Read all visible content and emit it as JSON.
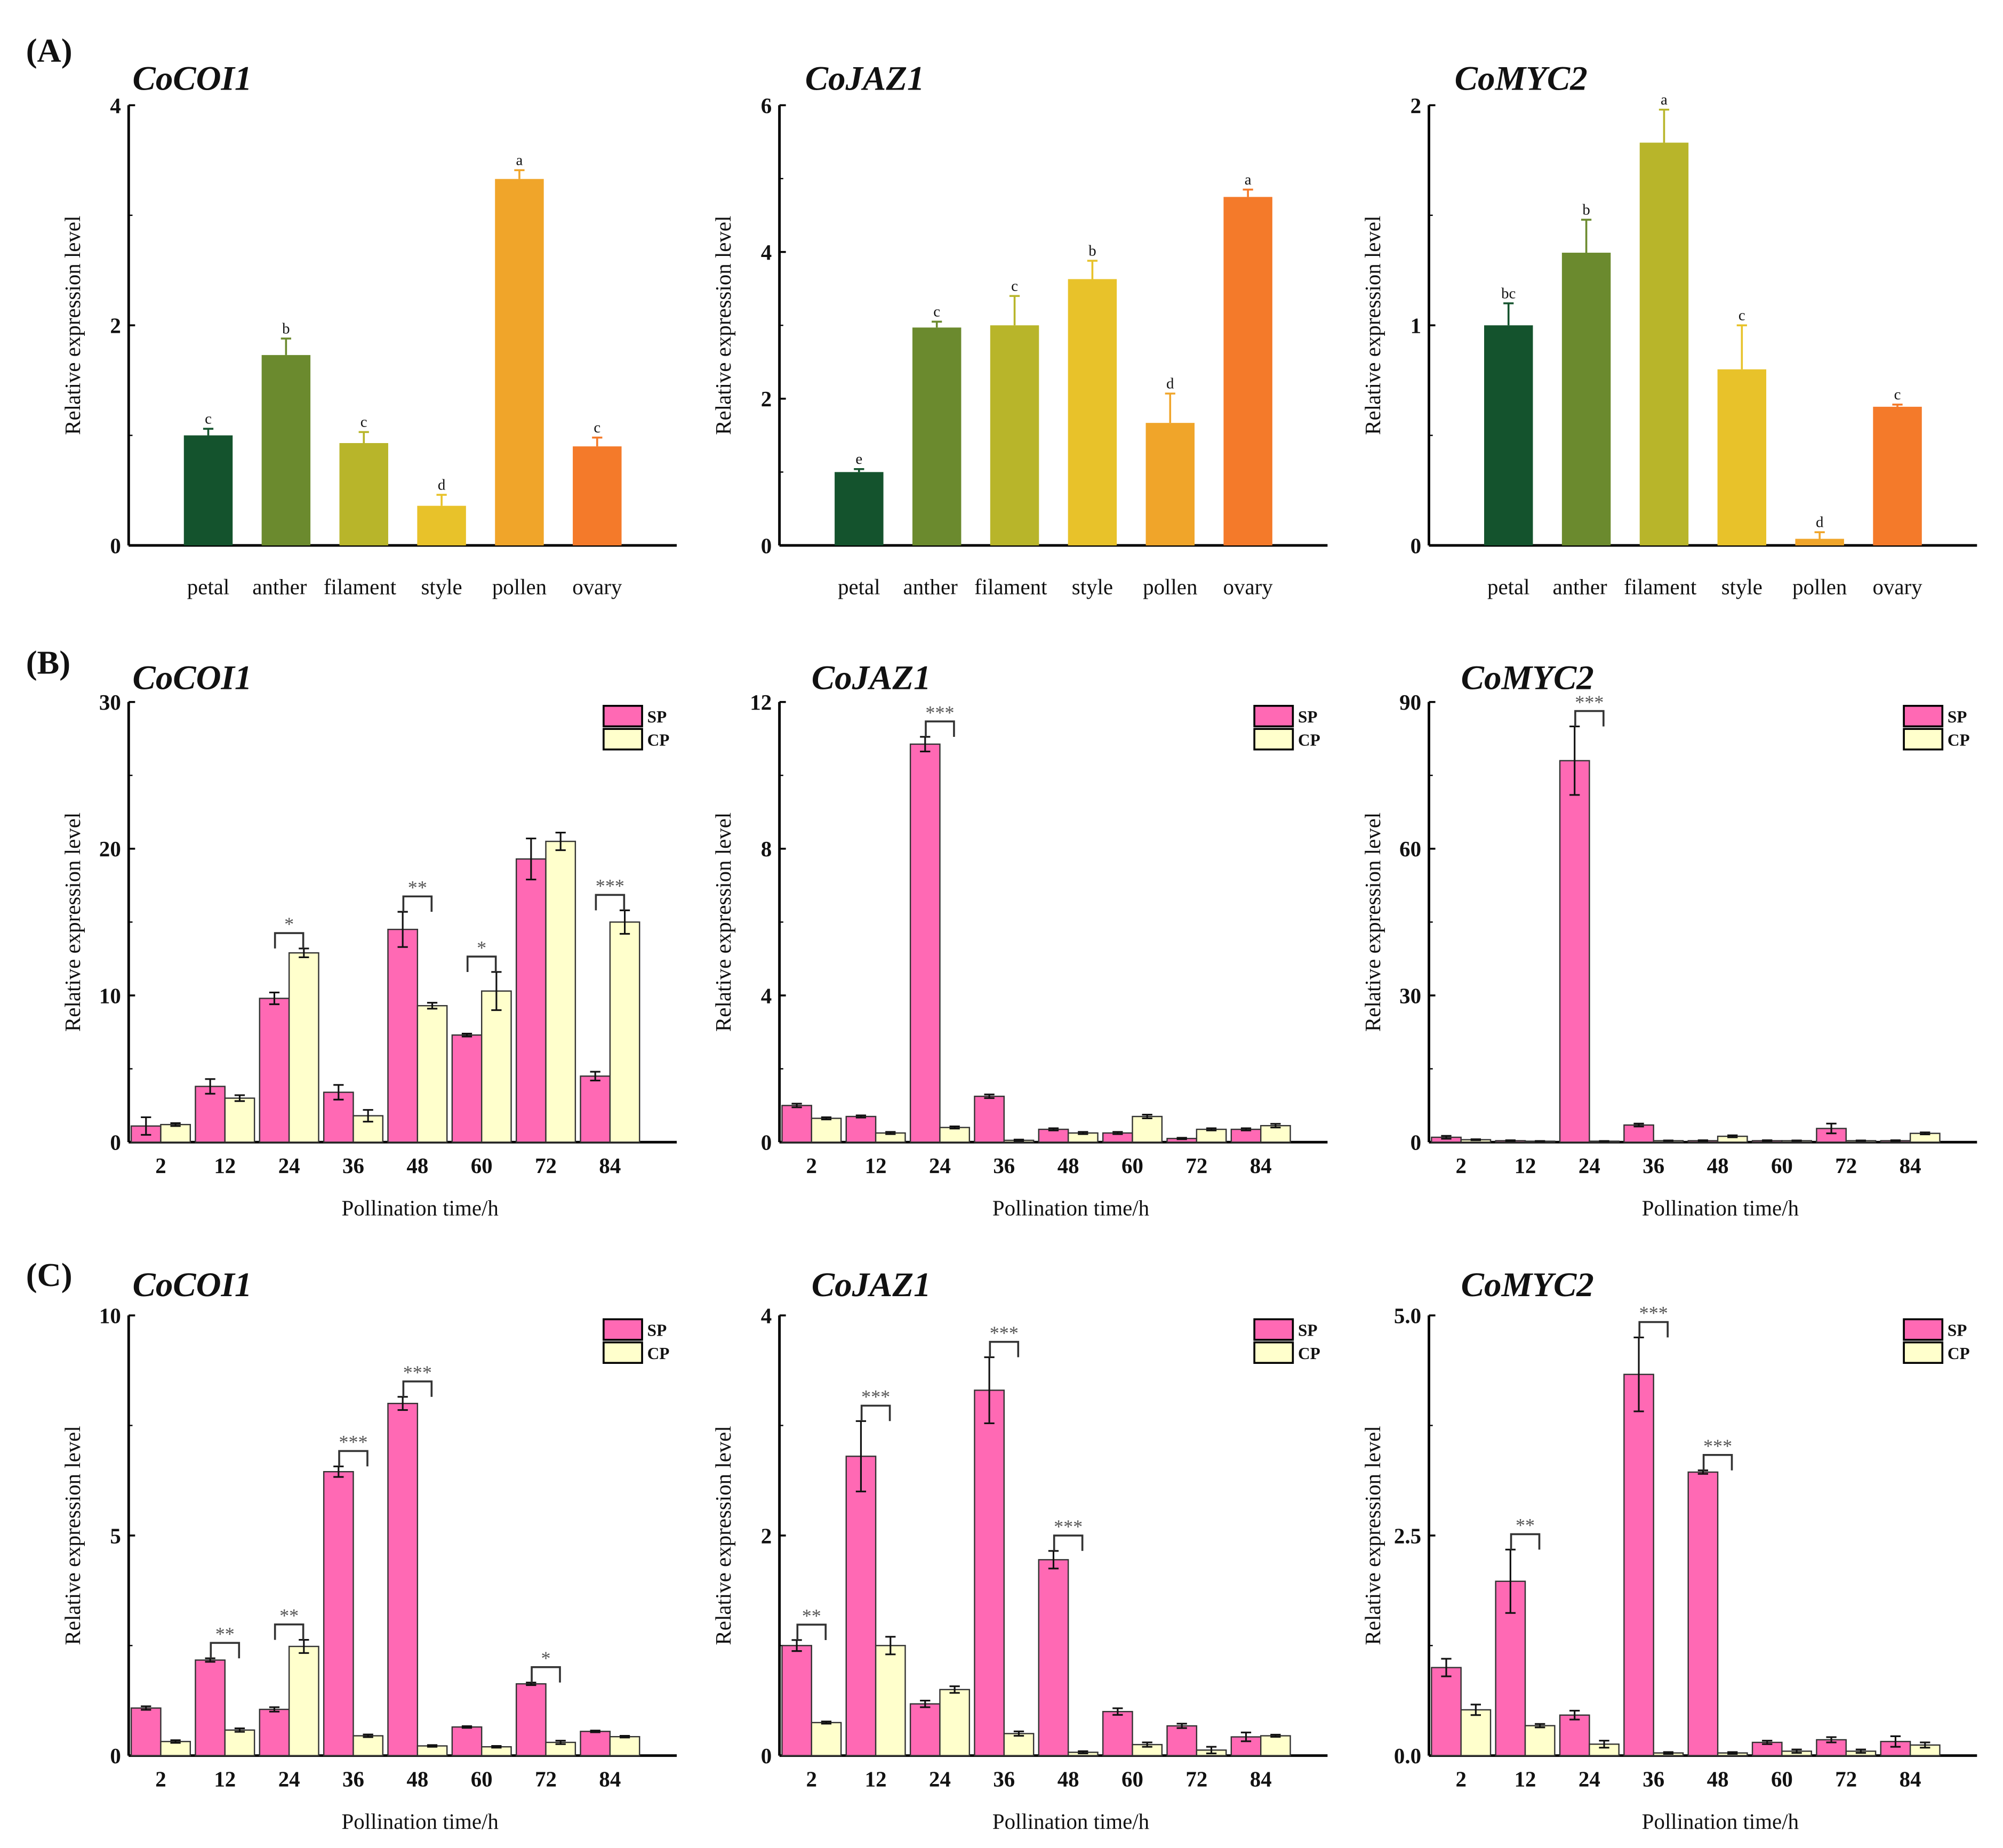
{
  "panel_labels": [
    "(A)",
    "(B)",
    "(C)"
  ],
  "colors": {
    "SP": "#ff69b4",
    "CP": "#ffffcc",
    "tissues": [
      "#14532d",
      "#6b8a2e",
      "#b8b52a",
      "#e8c22a",
      "#f0a52a",
      "#f47a2a"
    ]
  },
  "chart_data": [
    {
      "type": "bar",
      "panel": "A",
      "title": "CoCOI1",
      "ylabel": "Relative expression level",
      "xlabel": "",
      "ylim": [
        0,
        4
      ],
      "yticks": [
        "0",
        "2",
        "4"
      ],
      "tick_values": [
        0,
        2,
        4
      ],
      "categories": [
        "petal",
        "anther",
        "filament",
        "style",
        "pollen",
        "ovary"
      ],
      "values": [
        1.0,
        1.73,
        0.93,
        0.36,
        3.33,
        0.9
      ],
      "errors": [
        0.06,
        0.15,
        0.1,
        0.1,
        0.08,
        0.08
      ],
      "letters": [
        "c",
        "b",
        "c",
        "d",
        "a",
        "c"
      ]
    },
    {
      "type": "bar",
      "panel": "A",
      "title": "CoJAZ1",
      "ylabel": "Relative expression level",
      "xlabel": "",
      "ylim": [
        0,
        6
      ],
      "yticks": [
        "0",
        "2",
        "4",
        "6"
      ],
      "tick_values": [
        0,
        2,
        4,
        6
      ],
      "categories": [
        "petal",
        "anther",
        "filament",
        "style",
        "pollen",
        "ovary"
      ],
      "values": [
        1.0,
        2.97,
        3.0,
        3.63,
        1.67,
        4.75
      ],
      "errors": [
        0.04,
        0.08,
        0.4,
        0.25,
        0.4,
        0.1
      ],
      "letters": [
        "e",
        "c",
        "c",
        "b",
        "d",
        "a"
      ]
    },
    {
      "type": "bar",
      "panel": "A",
      "title": "CoMYC2",
      "ylabel": "Relative expression level",
      "xlabel": "",
      "ylim": [
        0,
        2
      ],
      "yticks": [
        "0",
        "1",
        "2"
      ],
      "tick_values": [
        0,
        1,
        2
      ],
      "categories": [
        "petal",
        "anther",
        "filament",
        "style",
        "pollen",
        "ovary"
      ],
      "values": [
        1.0,
        1.33,
        1.83,
        0.8,
        0.03,
        0.63
      ],
      "errors": [
        0.1,
        0.15,
        0.15,
        0.2,
        0.03,
        0.01
      ],
      "letters": [
        "bc",
        "b",
        "a",
        "c",
        "d",
        "c"
      ]
    },
    {
      "type": "bar",
      "panel": "B",
      "title": "CoCOI1",
      "ylabel": "Relative expression level",
      "xlabel": "Pollination time/h",
      "ylim": [
        0,
        30
      ],
      "yticks": [
        "0",
        "10",
        "20",
        "30"
      ],
      "tick_values": [
        0,
        10,
        20,
        30
      ],
      "categories": [
        "2",
        "12",
        "24",
        "36",
        "48",
        "60",
        "72",
        "84"
      ],
      "series": [
        {
          "name": "SP",
          "values": [
            1.1,
            3.8,
            9.8,
            3.4,
            14.5,
            7.3,
            19.3,
            4.5
          ],
          "errors": [
            0.6,
            0.5,
            0.4,
            0.5,
            1.2,
            0.1,
            1.4,
            0.3
          ]
        },
        {
          "name": "CP",
          "values": [
            1.2,
            3.0,
            12.9,
            1.8,
            9.3,
            10.3,
            20.5,
            15.0
          ],
          "errors": [
            0.1,
            0.2,
            0.3,
            0.4,
            0.2,
            1.3,
            0.6,
            0.8
          ]
        }
      ],
      "significance": [
        "",
        "",
        "*",
        "",
        "**",
        "*",
        "",
        "***"
      ]
    },
    {
      "type": "bar",
      "panel": "B",
      "title": "CoJAZ1",
      "ylabel": "Relative expression level",
      "xlabel": "Pollination time/h",
      "ylim": [
        0,
        12
      ],
      "yticks": [
        "0",
        "4",
        "8",
        "12"
      ],
      "tick_values": [
        0,
        4,
        8,
        12
      ],
      "categories": [
        "2",
        "12",
        "24",
        "36",
        "48",
        "60",
        "72",
        "84"
      ],
      "series": [
        {
          "name": "SP",
          "values": [
            1.0,
            0.7,
            10.85,
            1.25,
            0.35,
            0.25,
            0.1,
            0.35
          ],
          "errors": [
            0.05,
            0.03,
            0.2,
            0.05,
            0.03,
            0.03,
            0.02,
            0.03
          ]
        },
        {
          "name": "CP",
          "values": [
            0.65,
            0.25,
            0.4,
            0.05,
            0.25,
            0.7,
            0.35,
            0.45
          ],
          "errors": [
            0.03,
            0.03,
            0.03,
            0.02,
            0.03,
            0.05,
            0.03,
            0.05
          ]
        }
      ],
      "significance": [
        "",
        "",
        "***",
        "",
        "",
        "",
        "",
        ""
      ]
    },
    {
      "type": "bar",
      "panel": "B",
      "title": "CoMYC2",
      "ylabel": "Relative expression level",
      "xlabel": "Pollination time/h",
      "ylim": [
        0,
        90
      ],
      "yticks": [
        "0",
        "30",
        "60",
        "90"
      ],
      "tick_values": [
        0,
        30,
        60,
        90
      ],
      "categories": [
        "2",
        "12",
        "24",
        "36",
        "48",
        "60",
        "72",
        "84"
      ],
      "series": [
        {
          "name": "SP",
          "values": [
            1.0,
            0.3,
            78,
            3.5,
            0.3,
            0.3,
            2.8,
            0.3
          ],
          "errors": [
            0.3,
            0.1,
            7,
            0.3,
            0.1,
            0.1,
            1.0,
            0.1
          ]
        },
        {
          "name": "CP",
          "values": [
            0.5,
            0.2,
            0.2,
            0.3,
            1.2,
            0.3,
            0.3,
            1.8
          ],
          "errors": [
            0.1,
            0.05,
            0.05,
            0.05,
            0.2,
            0.05,
            0.05,
            0.2
          ]
        }
      ],
      "significance": [
        "",
        "",
        "***",
        "",
        "",
        "",
        "",
        ""
      ]
    },
    {
      "type": "bar",
      "panel": "C",
      "title": "CoCOI1",
      "ylabel": "Relative expression level",
      "xlabel": "Pollination time/h",
      "ylim": [
        0,
        10
      ],
      "yticks": [
        "0",
        "5",
        "10"
      ],
      "tick_values": [
        0,
        5,
        10
      ],
      "categories": [
        "2",
        "12",
        "24",
        "36",
        "48",
        "60",
        "72",
        "84"
      ],
      "series": [
        {
          "name": "SP",
          "values": [
            1.08,
            2.17,
            1.05,
            6.45,
            8.0,
            0.65,
            1.63,
            0.55
          ],
          "errors": [
            0.04,
            0.04,
            0.05,
            0.12,
            0.15,
            0.02,
            0.03,
            0.02
          ]
        },
        {
          "name": "CP",
          "values": [
            0.32,
            0.58,
            2.48,
            0.45,
            0.22,
            0.2,
            0.3,
            0.43
          ],
          "errors": [
            0.03,
            0.04,
            0.15,
            0.03,
            0.02,
            0.02,
            0.04,
            0.02
          ]
        }
      ],
      "significance": [
        "",
        "**",
        "**",
        "***",
        "***",
        "",
        "*",
        ""
      ]
    },
    {
      "type": "bar",
      "panel": "C",
      "title": "CoJAZ1",
      "ylabel": "Relative expression level",
      "xlabel": "Pollination time/h",
      "ylim": [
        0,
        4
      ],
      "yticks": [
        "0",
        "2",
        "4"
      ],
      "tick_values": [
        0,
        2,
        4
      ],
      "categories": [
        "2",
        "12",
        "24",
        "36",
        "48",
        "60",
        "72",
        "84"
      ],
      "series": [
        {
          "name": "SP",
          "values": [
            1.0,
            2.72,
            0.47,
            3.32,
            1.78,
            0.4,
            0.27,
            0.17
          ],
          "errors": [
            0.05,
            0.32,
            0.03,
            0.3,
            0.08,
            0.03,
            0.02,
            0.04
          ]
        },
        {
          "name": "CP",
          "values": [
            0.3,
            1.0,
            0.6,
            0.2,
            0.03,
            0.1,
            0.05,
            0.18
          ],
          "errors": [
            0.01,
            0.08,
            0.03,
            0.02,
            0.01,
            0.02,
            0.03,
            0.01
          ]
        }
      ],
      "significance": [
        "**",
        "***",
        "",
        "***",
        "***",
        "",
        "",
        ""
      ]
    },
    {
      "type": "bar",
      "panel": "C",
      "title": "CoMYC2",
      "ylabel": "Relative expression level",
      "xlabel": "Pollination time/h",
      "ylim": [
        0,
        5
      ],
      "yticks": [
        "0.0",
        "2.5",
        "5.0"
      ],
      "tick_values": [
        0,
        2.5,
        5
      ],
      "categories": [
        "2",
        "12",
        "24",
        "36",
        "48",
        "60",
        "72",
        "84"
      ],
      "series": [
        {
          "name": "SP",
          "values": [
            1.0,
            1.98,
            0.46,
            4.33,
            3.22,
            0.15,
            0.18,
            0.16
          ],
          "errors": [
            0.1,
            0.36,
            0.05,
            0.42,
            0.02,
            0.02,
            0.03,
            0.06
          ]
        },
        {
          "name": "CP",
          "values": [
            0.52,
            0.34,
            0.13,
            0.03,
            0.03,
            0.05,
            0.05,
            0.12
          ],
          "errors": [
            0.06,
            0.02,
            0.04,
            0.01,
            0.01,
            0.02,
            0.02,
            0.03
          ]
        }
      ],
      "significance": [
        "",
        "**",
        "",
        "***",
        "***",
        "",
        "",
        ""
      ]
    }
  ]
}
